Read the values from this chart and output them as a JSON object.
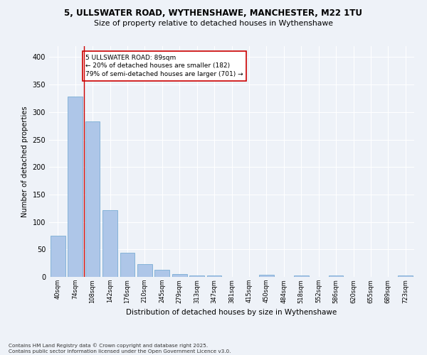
{
  "title1": "5, ULLSWATER ROAD, WYTHENSHAWE, MANCHESTER, M22 1TU",
  "title2": "Size of property relative to detached houses in Wythenshawe",
  "xlabel": "Distribution of detached houses by size in Wythenshawe",
  "ylabel": "Number of detached properties",
  "categories": [
    "40sqm",
    "74sqm",
    "108sqm",
    "142sqm",
    "176sqm",
    "210sqm",
    "245sqm",
    "279sqm",
    "313sqm",
    "347sqm",
    "381sqm",
    "415sqm",
    "450sqm",
    "484sqm",
    "518sqm",
    "552sqm",
    "586sqm",
    "620sqm",
    "655sqm",
    "689sqm",
    "723sqm"
  ],
  "values": [
    75,
    328,
    283,
    121,
    44,
    23,
    13,
    5,
    3,
    3,
    0,
    0,
    4,
    0,
    3,
    0,
    3,
    0,
    0,
    0,
    2
  ],
  "bar_color": "#aec6e8",
  "bar_edgecolor": "#7aadd4",
  "vline_x": 1.5,
  "vline_color": "#cc0000",
  "annotation_text": "5 ULLSWATER ROAD: 89sqm\n← 20% of detached houses are smaller (182)\n79% of semi-detached houses are larger (701) →",
  "annotation_box_edgecolor": "#cc0000",
  "annotation_box_facecolor": "#ffffff",
  "ylim": [
    0,
    420
  ],
  "yticks": [
    0,
    50,
    100,
    150,
    200,
    250,
    300,
    350,
    400
  ],
  "footer": "Contains HM Land Registry data © Crown copyright and database right 2025.\nContains public sector information licensed under the Open Government Licence v3.0.",
  "bg_color": "#eef2f8",
  "plot_bg_color": "#eef2f8"
}
